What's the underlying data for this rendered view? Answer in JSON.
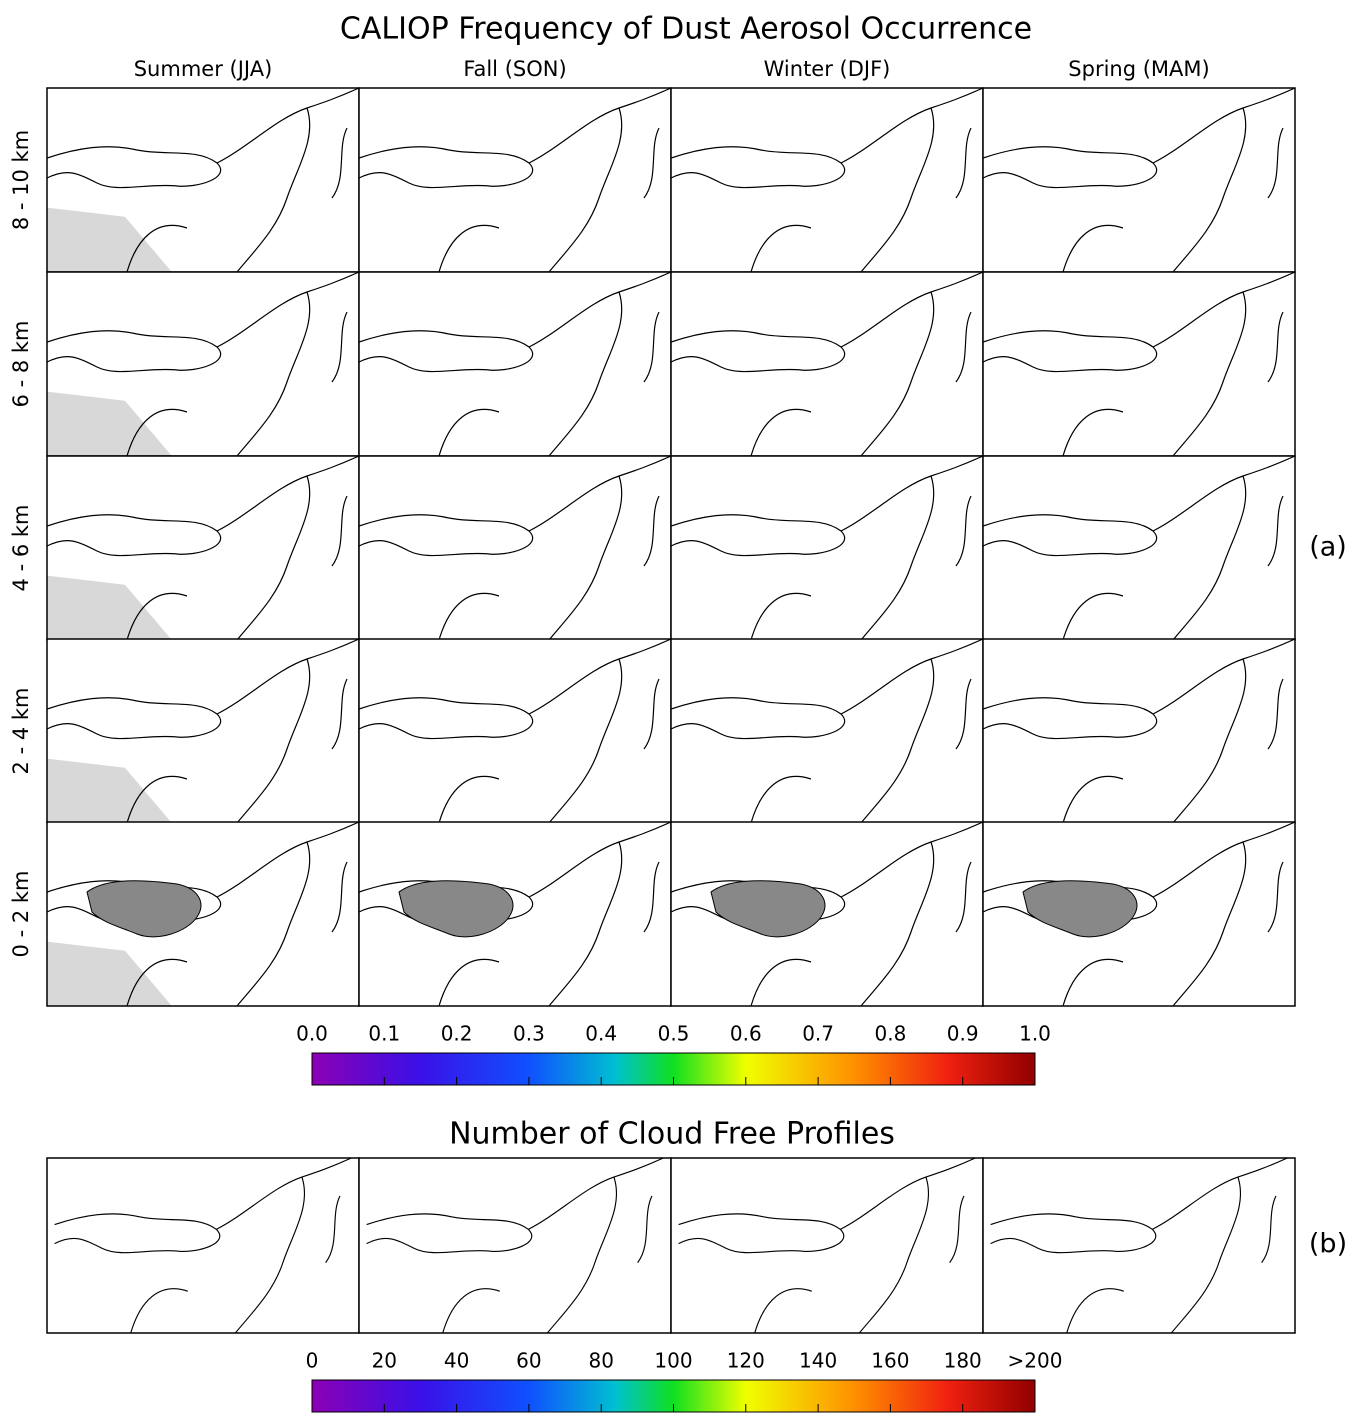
{
  "chart_data": [
    {
      "type": "map-grid",
      "title": "CALIOP Frequency of Dust Aerosol Occurrence",
      "columns": [
        "Summer (JJA)",
        "Fall (SON)",
        "Winter (DJF)",
        "Spring (MAM)"
      ],
      "rows": [
        "8 - 10 km",
        "6 - 8 km",
        "4 - 6 km",
        "2 - 4 km",
        "0 - 2 km"
      ],
      "panel_label": "(a)",
      "clim": [
        0,
        1
      ],
      "cticks": [
        {
          "value": 0,
          "label": "0.0"
        },
        0.1,
        0.2,
        0.3,
        0.4,
        0.5,
        0.6,
        0.7,
        0.8,
        0.9,
        {
          "value": 1,
          "label": "1.0"
        }
      ]
    },
    {
      "type": "map-strip",
      "title": "Number of Cloud Free Profiles",
      "panel_label": "(b)",
      "clim": [
        0,
        200
      ],
      "cticks": [
        0,
        20,
        40,
        60,
        80,
        100,
        120,
        140,
        160,
        180,
        {
          "value": 200,
          "label": ">200"
        }
      ]
    }
  ]
}
